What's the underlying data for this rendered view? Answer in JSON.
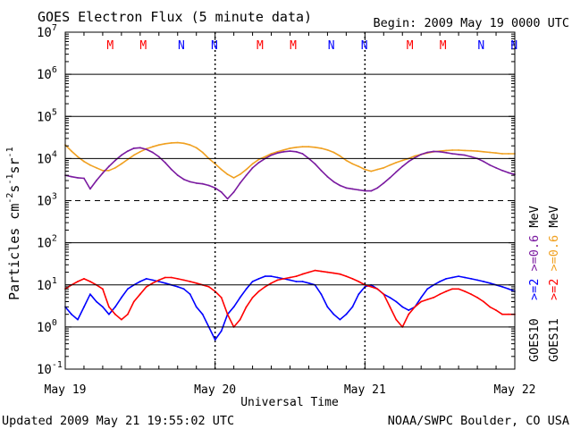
{
  "header": {
    "title": "GOES Electron Flux (5 minute data)",
    "begin": "Begin: 2009 May 19 0000 UTC"
  },
  "footer": {
    "updated": "Updated 2009 May 21 19:55:02 UTC",
    "credit": "NOAA/SWPC Boulder, CO USA"
  },
  "colors": {
    "goes10_ge2": "#0000ff",
    "goes10_ge06": "#7a1aa0",
    "goes11_ge2": "#ff0000",
    "goes11_ge06": "#f0a020",
    "marker_m": "#ff0000",
    "marker_n": "#0000ff"
  },
  "right_labels": {
    "goes10": "GOES10",
    "goes11": "GOES11",
    "ge2_a": ">=2",
    "ge06_a": ">=0.6",
    "mev_a": "MeV",
    "ge2_b": ">=2",
    "ge06_b": ">=0.6",
    "mev_b": "MeV"
  },
  "chart_data": {
    "type": "line",
    "title": "GOES Electron Flux (5 minute data)",
    "xlabel": "Universal Time",
    "ylabel": "Particles cm-2 s-1 sr-1",
    "ylabel_parts": {
      "base": "Particles cm",
      "e1": "-2",
      "mid1": "s",
      "e2": "-1",
      "mid2": "sr",
      "e3": "-1"
    },
    "y_scale": "log",
    "ylim": [
      0.1,
      10000000
    ],
    "xlim": [
      0,
      72
    ],
    "x_ticks": [
      {
        "x": 0,
        "label": "May 19"
      },
      {
        "x": 24,
        "label": "May 20"
      },
      {
        "x": 48,
        "label": "May 21"
      },
      {
        "x": 72,
        "label": "May 22"
      }
    ],
    "y_ticks": [
      {
        "value": 0.1,
        "base": "10",
        "exp": "-1"
      },
      {
        "value": 1,
        "base": "10",
        "exp": "0"
      },
      {
        "value": 10,
        "base": "10",
        "exp": "1"
      },
      {
        "value": 100,
        "base": "10",
        "exp": "2"
      },
      {
        "value": 1000,
        "base": "10",
        "exp": "3"
      },
      {
        "value": 10000,
        "base": "10",
        "exp": "4"
      },
      {
        "value": 100000,
        "base": "10",
        "exp": "5"
      },
      {
        "value": 1000000,
        "base": "10",
        "exp": "6"
      },
      {
        "value": 10000000,
        "base": "10",
        "exp": "7"
      }
    ],
    "grid_solid": [
      1,
      10,
      100,
      10000,
      100000,
      1000000
    ],
    "grid_dashed": [
      1000
    ],
    "day_boundaries": [
      24,
      48
    ],
    "markers": [
      {
        "x": 7.2,
        "label": "M",
        "type": "m"
      },
      {
        "x": 12.5,
        "label": "M",
        "type": "m"
      },
      {
        "x": 18.6,
        "label": "N",
        "type": "n"
      },
      {
        "x": 23.9,
        "label": "N",
        "type": "n"
      },
      {
        "x": 31.2,
        "label": "M",
        "type": "m"
      },
      {
        "x": 36.5,
        "label": "M",
        "type": "m"
      },
      {
        "x": 42.6,
        "label": "N",
        "type": "n"
      },
      {
        "x": 47.9,
        "label": "N",
        "type": "n"
      },
      {
        "x": 55.2,
        "label": "M",
        "type": "m"
      },
      {
        "x": 60.5,
        "label": "M",
        "type": "m"
      },
      {
        "x": 66.6,
        "label": "N",
        "type": "n"
      },
      {
        "x": 71.9,
        "label": "N",
        "type": "n"
      }
    ],
    "series": [
      {
        "name": "GOES11 >=0.6 MeV",
        "color": "#f0a020",
        "x": [
          0,
          1,
          2,
          3,
          4,
          5,
          6,
          7,
          8,
          9,
          10,
          11,
          12,
          13,
          14,
          15,
          16,
          17,
          18,
          19,
          20,
          21,
          22,
          23,
          24,
          25,
          26,
          27,
          28,
          29,
          30,
          31,
          32,
          33,
          34,
          35,
          36,
          37,
          38,
          39,
          40,
          41,
          42,
          43,
          44,
          45,
          46,
          47,
          48,
          49,
          50,
          51,
          52,
          53,
          54,
          55,
          56,
          57,
          58,
          59,
          60,
          61,
          62,
          63,
          64,
          65,
          66,
          67,
          68,
          69,
          70,
          71,
          72
        ],
        "values": [
          21000,
          15000,
          11000,
          8500,
          7000,
          6000,
          5200,
          5200,
          6000,
          7500,
          9500,
          12000,
          14500,
          17000,
          19000,
          21000,
          22500,
          23500,
          23800,
          23000,
          21000,
          18000,
          14000,
          10000,
          7500,
          5500,
          4200,
          3500,
          4200,
          5500,
          7500,
          9500,
          11000,
          13000,
          14500,
          16000,
          17500,
          18500,
          19000,
          19000,
          18500,
          17500,
          16000,
          14000,
          11500,
          9000,
          7500,
          6500,
          5500,
          5000,
          5500,
          6000,
          7000,
          8000,
          9000,
          10000,
          11500,
          12500,
          13500,
          14500,
          15000,
          15500,
          15800,
          15800,
          15500,
          15300,
          15000,
          14500,
          14000,
          13500,
          13000,
          13000,
          13000
        ]
      },
      {
        "name": "GOES10 >=0.6 MeV",
        "color": "#7a1aa0",
        "x": [
          0,
          1,
          2,
          3,
          4,
          5,
          6,
          7,
          8,
          9,
          10,
          11,
          12,
          13,
          14,
          15,
          16,
          17,
          18,
          19,
          20,
          21,
          22,
          23,
          24,
          25,
          26,
          27,
          28,
          29,
          30,
          31,
          32,
          33,
          34,
          35,
          36,
          37,
          38,
          39,
          40,
          41,
          42,
          43,
          44,
          45,
          46,
          47,
          48,
          49,
          50,
          51,
          52,
          53,
          54,
          55,
          56,
          57,
          58,
          59,
          60,
          61,
          62,
          63,
          64,
          65,
          66,
          67,
          68,
          69,
          70,
          71,
          72
        ],
        "values": [
          4000,
          3700,
          3500,
          3400,
          1900,
          3000,
          4500,
          6500,
          9000,
          12000,
          15000,
          17500,
          18000,
          16500,
          14000,
          11000,
          8000,
          5500,
          4000,
          3200,
          2800,
          2600,
          2500,
          2300,
          2000,
          1600,
          1100,
          1600,
          2600,
          4000,
          6000,
          8000,
          10000,
          12000,
          13500,
          14500,
          15000,
          14500,
          13000,
          10000,
          7500,
          5200,
          3700,
          2800,
          2300,
          2000,
          1900,
          1800,
          1700,
          1700,
          2000,
          2600,
          3500,
          4800,
          6500,
          8500,
          10500,
          12500,
          14000,
          14800,
          14500,
          13800,
          13000,
          12500,
          12000,
          11000,
          10000,
          8500,
          7000,
          6000,
          5200,
          4600,
          4200
        ]
      },
      {
        "name": "GOES10 >=2 MeV",
        "color": "#0000ff",
        "x": [
          0,
          1,
          2,
          3,
          4,
          5,
          6,
          7,
          8,
          9,
          10,
          11,
          12,
          13,
          14,
          15,
          16,
          17,
          18,
          19,
          20,
          21,
          22,
          23,
          24,
          25,
          26,
          27,
          28,
          29,
          30,
          31,
          32,
          33,
          34,
          35,
          36,
          37,
          38,
          39,
          40,
          41,
          42,
          43,
          44,
          45,
          46,
          47,
          48,
          49,
          50,
          51,
          52,
          53,
          54,
          55,
          56,
          57,
          58,
          59,
          60,
          61,
          62,
          63,
          64,
          65,
          66,
          67,
          68,
          69,
          70,
          71,
          72
        ],
        "values": [
          3,
          2,
          1.5,
          3,
          6,
          4,
          3,
          2,
          3,
          5,
          8,
          10,
          12,
          14,
          13,
          12,
          11,
          10,
          9,
          8,
          6,
          3,
          2,
          1,
          0.5,
          0.8,
          2,
          3,
          5,
          8,
          12,
          14,
          16,
          16,
          15,
          14,
          13,
          12,
          12,
          11,
          10,
          6,
          3,
          2,
          1.5,
          2,
          3,
          6,
          9,
          10,
          8,
          6,
          5,
          4,
          3,
          2.5,
          3,
          5,
          8,
          10,
          12,
          14,
          15,
          16,
          15,
          14,
          13,
          12,
          11,
          10,
          9,
          8,
          7
        ]
      },
      {
        "name": "GOES11 >=2 MeV",
        "color": "#ff0000",
        "x": [
          0,
          1,
          2,
          3,
          4,
          5,
          6,
          7,
          8,
          9,
          10,
          11,
          12,
          13,
          14,
          15,
          16,
          17,
          18,
          19,
          20,
          21,
          22,
          23,
          24,
          25,
          26,
          27,
          28,
          29,
          30,
          31,
          32,
          33,
          34,
          35,
          36,
          37,
          38,
          39,
          40,
          41,
          42,
          43,
          44,
          45,
          46,
          47,
          48,
          49,
          50,
          51,
          52,
          53,
          54,
          55,
          56,
          57,
          58,
          59,
          60,
          61,
          62,
          63,
          64,
          65,
          66,
          67,
          68,
          69,
          70,
          71,
          72
        ],
        "values": [
          8,
          10,
          12,
          14,
          12,
          10,
          8,
          3,
          2,
          1.5,
          2,
          4,
          6,
          9,
          11,
          13,
          15,
          15,
          14,
          13,
          12,
          11,
          10,
          9,
          7,
          5,
          2,
          1,
          1.5,
          3,
          5,
          7,
          9,
          11,
          13,
          14,
          15,
          16,
          18,
          20,
          22,
          21,
          20,
          19,
          18,
          16,
          14,
          12,
          10,
          9,
          8,
          6,
          3,
          1.5,
          1,
          2,
          3,
          4,
          4.5,
          5,
          6,
          7,
          8,
          8,
          7,
          6,
          5,
          4,
          3,
          2.5,
          2,
          2,
          2
        ]
      }
    ]
  }
}
